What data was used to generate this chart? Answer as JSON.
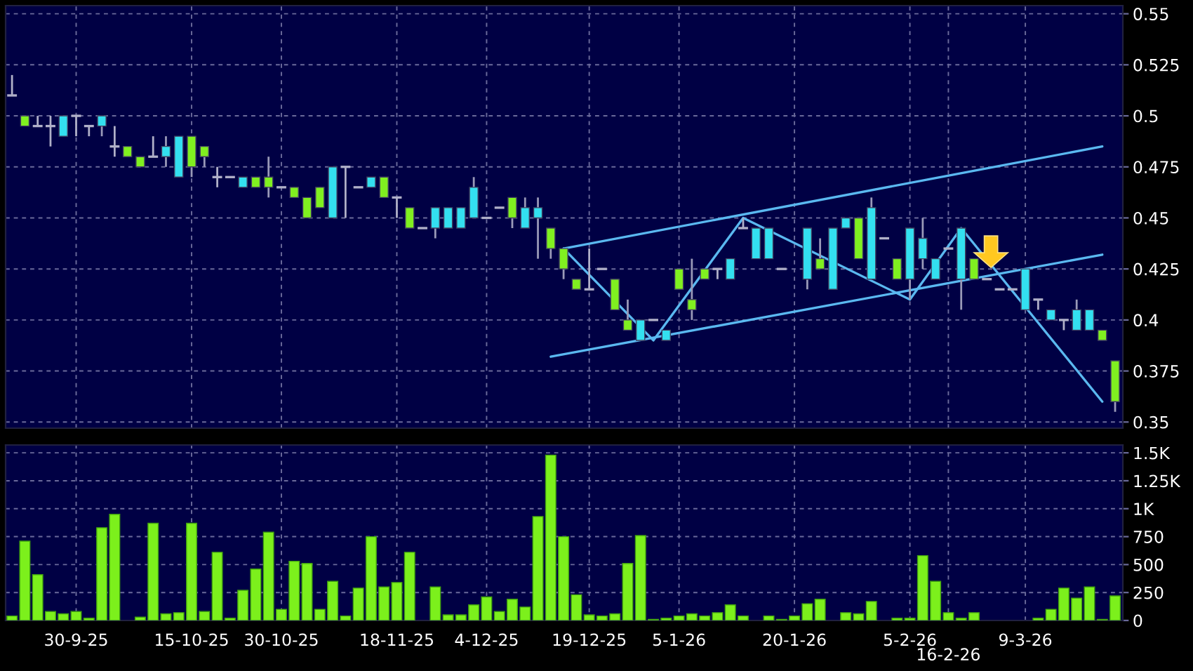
{
  "chart_data": [
    {
      "type": "candlestick",
      "categories": [
        null,
        null,
        null,
        null,
        null,
        null,
        null,
        null,
        null,
        null,
        null,
        null,
        null,
        null,
        null,
        null,
        null,
        null,
        null,
        null,
        null,
        null,
        null,
        null,
        null,
        null,
        null,
        null,
        null,
        null,
        null,
        null,
        null,
        null,
        null,
        null,
        null,
        null,
        null,
        null,
        null,
        null,
        null,
        null,
        null,
        null,
        null,
        null,
        null,
        null,
        null,
        null,
        null,
        null,
        null,
        null,
        null,
        null,
        null,
        null,
        null,
        null,
        null,
        null,
        null,
        null,
        null,
        null,
        null,
        null,
        null,
        null,
        null,
        null,
        null,
        null,
        null,
        null,
        null,
        null,
        null,
        null,
        null,
        null,
        null,
        null,
        null
      ],
      "ohlc": [
        [
          0.51,
          0.52,
          0.51,
          0.51
        ],
        [
          0.5,
          0.5,
          0.495,
          0.495
        ],
        [
          0.495,
          0.5,
          0.495,
          0.495
        ],
        [
          0.495,
          0.5,
          0.485,
          0.495
        ],
        [
          0.49,
          0.5,
          0.49,
          0.5
        ],
        [
          0.5,
          0.5,
          0.49,
          0.5
        ],
        [
          0.495,
          0.495,
          0.49,
          0.495
        ],
        [
          0.495,
          0.5,
          0.49,
          0.5
        ],
        [
          0.485,
          0.495,
          0.48,
          0.485
        ],
        [
          0.485,
          0.485,
          0.48,
          0.48
        ],
        [
          0.48,
          0.48,
          0.475,
          0.475
        ],
        [
          0.48,
          0.49,
          0.48,
          0.48
        ],
        [
          0.48,
          0.49,
          0.475,
          0.485
        ],
        [
          0.47,
          0.49,
          0.47,
          0.49
        ],
        [
          0.49,
          0.49,
          0.47,
          0.475
        ],
        [
          0.485,
          0.485,
          0.475,
          0.48
        ],
        [
          0.47,
          0.475,
          0.465,
          0.47
        ],
        [
          0.47,
          0.47,
          0.47,
          0.47
        ],
        [
          0.465,
          0.47,
          0.465,
          0.47
        ],
        [
          0.47,
          0.47,
          0.465,
          0.465
        ],
        [
          0.47,
          0.48,
          0.46,
          0.465
        ],
        [
          0.465,
          0.465,
          0.465,
          0.465
        ],
        [
          0.465,
          0.465,
          0.46,
          0.46
        ],
        [
          0.46,
          0.46,
          0.45,
          0.45
        ],
        [
          0.465,
          0.465,
          0.455,
          0.455
        ],
        [
          0.45,
          0.475,
          0.45,
          0.475
        ],
        [
          0.475,
          0.475,
          0.45,
          0.475
        ],
        [
          0.465,
          0.465,
          0.465,
          0.465
        ],
        [
          0.465,
          0.47,
          0.465,
          0.47
        ],
        [
          0.47,
          0.47,
          0.46,
          0.46
        ],
        [
          0.46,
          0.46,
          0.45,
          0.46
        ],
        [
          0.455,
          0.455,
          0.445,
          0.445
        ],
        [
          0.445,
          0.445,
          0.445,
          0.445
        ],
        [
          0.445,
          0.455,
          0.44,
          0.455
        ],
        [
          0.445,
          0.455,
          0.445,
          0.455
        ],
        [
          0.445,
          0.455,
          0.445,
          0.455
        ],
        [
          0.45,
          0.47,
          0.45,
          0.465
        ],
        [
          0.45,
          0.45,
          0.45,
          0.45
        ],
        [
          0.455,
          0.455,
          0.455,
          0.455
        ],
        [
          0.46,
          0.46,
          0.445,
          0.45
        ],
        [
          0.445,
          0.46,
          0.445,
          0.455
        ],
        [
          0.45,
          0.46,
          0.43,
          0.455
        ],
        [
          0.445,
          0.445,
          0.43,
          0.435
        ],
        [
          0.435,
          0.435,
          0.42,
          0.425
        ],
        [
          0.42,
          0.42,
          0.415,
          0.415
        ],
        [
          0.415,
          0.435,
          0.415,
          0.415
        ],
        [
          0.425,
          0.425,
          0.425,
          0.425
        ],
        [
          0.42,
          0.42,
          0.405,
          0.405
        ],
        [
          0.4,
          0.41,
          0.395,
          0.395
        ],
        [
          0.39,
          0.4,
          0.39,
          0.4
        ],
        [
          0.4,
          0.4,
          0.4,
          0.4
        ],
        [
          0.39,
          0.395,
          0.39,
          0.395
        ],
        [
          0.425,
          0.425,
          0.415,
          0.415
        ],
        [
          0.41,
          0.43,
          0.4,
          0.405
        ],
        [
          0.425,
          0.425,
          0.42,
          0.42
        ],
        [
          0.425,
          0.425,
          0.42,
          0.425
        ],
        [
          0.42,
          0.43,
          0.42,
          0.43
        ],
        [
          0.445,
          0.45,
          0.445,
          0.445
        ],
        [
          0.43,
          0.445,
          0.43,
          0.445
        ],
        [
          0.43,
          0.445,
          0.43,
          0.445
        ],
        [
          0.425,
          0.425,
          0.425,
          0.425
        ],
        null,
        [
          0.42,
          0.445,
          0.415,
          0.445
        ],
        [
          0.43,
          0.44,
          0.425,
          0.425
        ],
        [
          0.415,
          0.445,
          0.415,
          0.445
        ],
        [
          0.445,
          0.45,
          0.445,
          0.45
        ],
        [
          0.45,
          0.45,
          0.43,
          0.43
        ],
        [
          0.42,
          0.46,
          0.42,
          0.455
        ],
        [
          0.44,
          0.44,
          0.44,
          0.44
        ],
        [
          0.43,
          0.43,
          0.42,
          0.42
        ],
        [
          0.42,
          0.445,
          0.41,
          0.445
        ],
        [
          0.43,
          0.45,
          0.425,
          0.44
        ],
        [
          0.42,
          0.43,
          0.42,
          0.43
        ],
        [
          0.435,
          0.435,
          0.435,
          0.435
        ],
        [
          0.42,
          0.445,
          0.405,
          0.445
        ],
        [
          0.43,
          0.43,
          0.42,
          0.42
        ],
        [
          0.42,
          0.42,
          0.42,
          0.42
        ],
        [
          0.415,
          0.415,
          0.415,
          0.415
        ],
        [
          0.415,
          0.415,
          0.415,
          0.415
        ],
        [
          0.405,
          0.425,
          0.405,
          0.425
        ],
        [
          0.41,
          0.41,
          0.405,
          0.41
        ],
        [
          0.4,
          0.405,
          0.4,
          0.405
        ],
        [
          0.4,
          0.4,
          0.395,
          0.4
        ],
        [
          0.395,
          0.41,
          0.395,
          0.405
        ],
        [
          0.395,
          0.405,
          0.395,
          0.405
        ],
        [
          0.395,
          0.395,
          0.39,
          0.39
        ],
        [
          0.38,
          0.38,
          0.355,
          0.36
        ]
      ],
      "colors": [
        "#b0b0c8",
        "#80f020",
        "#b0b0c8",
        "#b0b0c8",
        "#33e0f0",
        "#b0b0c8",
        "#b0b0c8",
        "#33e0f0",
        "#b0b0c8",
        "#80f020",
        "#80f020",
        "#b0b0c8",
        "#33e0f0",
        "#33e0f0",
        "#80f020",
        "#80f020",
        "#b0b0c8",
        "#b0b0c8",
        "#33e0f0",
        "#80f020",
        "#80f020",
        "#b0b0c8",
        "#80f020",
        "#80f020",
        "#80f020",
        "#33e0f0",
        "#b0b0c8",
        "#b0b0c8",
        "#33e0f0",
        "#80f020",
        "#b0b0c8",
        "#80f020",
        "#b0b0c8",
        "#33e0f0",
        "#33e0f0",
        "#33e0f0",
        "#33e0f0",
        "#b0b0c8",
        "#b0b0c8",
        "#80f020",
        "#33e0f0",
        "#33e0f0",
        "#80f020",
        "#80f020",
        "#80f020",
        "#b0b0c8",
        "#b0b0c8",
        "#80f020",
        "#80f020",
        "#33e0f0",
        "#b0b0c8",
        "#33e0f0",
        "#80f020",
        "#80f020",
        "#80f020",
        "#b0b0c8",
        "#33e0f0",
        "#b0b0c8",
        "#33e0f0",
        "#33e0f0",
        "#b0b0c8",
        null,
        "#33e0f0",
        "#80f020",
        "#33e0f0",
        "#33e0f0",
        "#80f020",
        "#33e0f0",
        "#b0b0c8",
        "#80f020",
        "#33e0f0",
        "#33e0f0",
        "#33e0f0",
        "#b0b0c8",
        "#33e0f0",
        "#80f020",
        "#b0b0c8",
        "#b0b0c8",
        "#b0b0c8",
        "#33e0f0",
        "#b0b0c8",
        "#33e0f0",
        "#b0b0c8",
        "#33e0f0",
        "#33e0f0",
        "#80f020",
        "#80f020"
      ],
      "series": [
        {
          "type": "line",
          "color": "#5ab8f0",
          "values": [
            null,
            null,
            null,
            null,
            null,
            null,
            null,
            null,
            null,
            null,
            null,
            null,
            null,
            null,
            null,
            null,
            null,
            null,
            null,
            null,
            null,
            null,
            null,
            null,
            null,
            null,
            null,
            null,
            null,
            null,
            null,
            null,
            null,
            null,
            null,
            null,
            null,
            null,
            null,
            null,
            null,
            null,
            null,
            0.435,
            null,
            null,
            null,
            null,
            null,
            null,
            null,
            null,
            null,
            null,
            null,
            null,
            null,
            null,
            null,
            null,
            null,
            null,
            null,
            null,
            null,
            null,
            null,
            null,
            null,
            null,
            null,
            null,
            null,
            null,
            null,
            null,
            null,
            null,
            null,
            null,
            null,
            null,
            null,
            null,
            null,
            0.485,
            null
          ]
        },
        {
          "type": "line",
          "color": "#5ab8f0",
          "values": [
            null,
            null,
            null,
            null,
            null,
            null,
            null,
            null,
            null,
            null,
            null,
            null,
            null,
            null,
            null,
            null,
            null,
            null,
            null,
            null,
            null,
            null,
            null,
            null,
            null,
            null,
            null,
            null,
            null,
            null,
            null,
            null,
            null,
            null,
            null,
            null,
            null,
            null,
            null,
            null,
            null,
            null,
            0.382,
            null,
            null,
            null,
            null,
            null,
            null,
            null,
            null,
            null,
            null,
            null,
            null,
            null,
            null,
            null,
            null,
            null,
            null,
            null,
            null,
            null,
            null,
            null,
            null,
            null,
            null,
            null,
            null,
            null,
            null,
            null,
            null,
            null,
            null,
            null,
            null,
            null,
            null,
            null,
            null,
            null,
            null,
            0.432,
            null
          ]
        },
        {
          "type": "line",
          "color": "#5ab8f0",
          "values": [
            null,
            null,
            null,
            null,
            null,
            null,
            null,
            null,
            null,
            null,
            null,
            null,
            null,
            null,
            null,
            null,
            null,
            null,
            null,
            null,
            null,
            null,
            null,
            null,
            null,
            null,
            null,
            null,
            null,
            null,
            null,
            null,
            null,
            null,
            null,
            null,
            null,
            null,
            null,
            null,
            null,
            null,
            null,
            0.435,
            null,
            null,
            null,
            null,
            null,
            null,
            0.39,
            null,
            null,
            null,
            null,
            null,
            null,
            0.45,
            null,
            null,
            null,
            null,
            null,
            null,
            null,
            null,
            null,
            null,
            null,
            null,
            0.41,
            null,
            null,
            null,
            0.445,
            null,
            null,
            null,
            null,
            null,
            null,
            null,
            null,
            null,
            null,
            0.36,
            null
          ]
        }
      ],
      "ylim": [
        0.347,
        0.554
      ],
      "yticks": [
        0.35,
        0.375,
        0.4,
        0.425,
        0.45,
        0.475,
        0.5,
        0.525,
        0.55
      ],
      "grid": true,
      "tick_labels": "y"
    },
    {
      "type": "bar",
      "categories": [
        null,
        null,
        null,
        null,
        null,
        "30-9-25",
        null,
        null,
        null,
        null,
        null,
        null,
        null,
        null,
        "15-10-25",
        null,
        null,
        null,
        null,
        null,
        null,
        "30-10-25",
        null,
        null,
        null,
        null,
        null,
        null,
        null,
        null,
        "18-11-25",
        null,
        null,
        null,
        null,
        null,
        null,
        "4-12-25",
        null,
        null,
        null,
        null,
        null,
        null,
        null,
        "19-12-25",
        null,
        null,
        null,
        null,
        null,
        null,
        "5-1-26",
        null,
        null,
        null,
        null,
        null,
        null,
        null,
        null,
        "20-1-26",
        null,
        null,
        null,
        null,
        null,
        null,
        null,
        null,
        "5-2-26",
        null,
        null,
        "16-2-26",
        null,
        null,
        null,
        null,
        null,
        "9-3-26",
        null,
        null,
        null,
        null,
        null,
        null,
        null
      ],
      "values": [
        40,
        710,
        410,
        80,
        60,
        80,
        20,
        830,
        950,
        null,
        30,
        870,
        60,
        70,
        870,
        80,
        610,
        20,
        270,
        460,
        790,
        100,
        530,
        510,
        100,
        350,
        40,
        290,
        750,
        300,
        340,
        610,
        null,
        300,
        50,
        50,
        140,
        210,
        80,
        190,
        120,
        930,
        1480,
        750,
        230,
        50,
        40,
        60,
        510,
        760,
        10,
        20,
        40,
        60,
        40,
        70,
        140,
        40,
        null,
        40,
        10,
        40,
        150,
        190,
        null,
        70,
        60,
        170,
        null,
        20,
        20,
        580,
        350,
        70,
        20,
        70,
        null,
        null,
        null,
        null,
        20,
        100,
        290,
        200,
        300,
        10,
        220
      ],
      "color": "#7cf01c",
      "ylim": [
        0,
        1570
      ],
      "yticks": [
        0,
        250,
        500,
        750,
        {
          "value": 1000,
          "label": "1K"
        },
        {
          "value": 1250,
          "label": "1.25K"
        },
        {
          "value": 1500,
          "label": "1.5K"
        }
      ],
      "grid": true
    }
  ]
}
